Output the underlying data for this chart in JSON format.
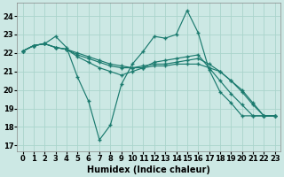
{
  "xlabel": "Humidex (Indice chaleur)",
  "xlim": [
    -0.5,
    23.5
  ],
  "ylim": [
    16.7,
    24.7
  ],
  "bg_color": "#cce8e4",
  "grid_color": "#aad4cc",
  "line_color": "#1a7a6e",
  "series": [
    {
      "x": [
        0,
        1,
        2,
        3,
        4,
        5,
        6,
        7,
        8,
        9,
        10,
        11,
        12,
        13,
        14,
        15,
        16,
        17,
        18,
        19,
        20,
        21,
        22,
        23
      ],
      "y": [
        22.1,
        22.4,
        22.5,
        22.9,
        22.3,
        20.7,
        19.4,
        17.3,
        18.1,
        20.3,
        21.4,
        22.1,
        22.9,
        22.8,
        23.0,
        24.3,
        23.1,
        21.1,
        19.9,
        19.3,
        18.6,
        18.6,
        18.6,
        18.6
      ]
    },
    {
      "x": [
        0,
        1,
        2,
        3,
        4,
        5,
        6,
        7,
        8,
        9,
        10,
        11,
        12,
        13,
        14,
        15,
        16,
        17,
        18,
        19,
        20,
        21,
        22,
        23
      ],
      "y": [
        22.1,
        22.4,
        22.5,
        22.3,
        22.2,
        22.0,
        21.8,
        21.6,
        21.4,
        21.3,
        21.2,
        21.2,
        21.3,
        21.3,
        21.4,
        21.4,
        21.4,
        21.2,
        21.0,
        20.5,
        20.0,
        19.3,
        18.6,
        18.6
      ]
    },
    {
      "x": [
        0,
        1,
        2,
        3,
        4,
        5,
        6,
        7,
        8,
        9,
        10,
        11,
        12,
        13,
        14,
        15,
        16,
        17,
        18,
        19,
        20,
        21,
        22,
        23
      ],
      "y": [
        22.1,
        22.4,
        22.5,
        22.3,
        22.2,
        21.9,
        21.7,
        21.5,
        21.3,
        21.2,
        21.2,
        21.3,
        21.4,
        21.4,
        21.5,
        21.6,
        21.7,
        21.4,
        21.0,
        20.5,
        19.9,
        19.2,
        18.6,
        18.6
      ]
    },
    {
      "x": [
        0,
        1,
        2,
        3,
        4,
        5,
        6,
        7,
        8,
        9,
        10,
        11,
        12,
        13,
        14,
        15,
        16,
        17,
        18,
        19,
        20,
        21,
        22,
        23
      ],
      "y": [
        22.1,
        22.4,
        22.5,
        22.3,
        22.2,
        21.8,
        21.5,
        21.2,
        21.0,
        20.8,
        21.0,
        21.2,
        21.5,
        21.6,
        21.7,
        21.8,
        21.9,
        21.2,
        20.5,
        19.8,
        19.2,
        18.6,
        18.6,
        18.6
      ]
    }
  ],
  "x_ticks": [
    0,
    1,
    2,
    3,
    4,
    5,
    6,
    7,
    8,
    9,
    10,
    11,
    12,
    13,
    14,
    15,
    16,
    17,
    18,
    19,
    20,
    21,
    22,
    23
  ],
  "y_ticks": [
    17,
    18,
    19,
    20,
    21,
    22,
    23,
    24
  ],
  "tick_fontsize": 6.0,
  "label_fontsize": 7.0
}
